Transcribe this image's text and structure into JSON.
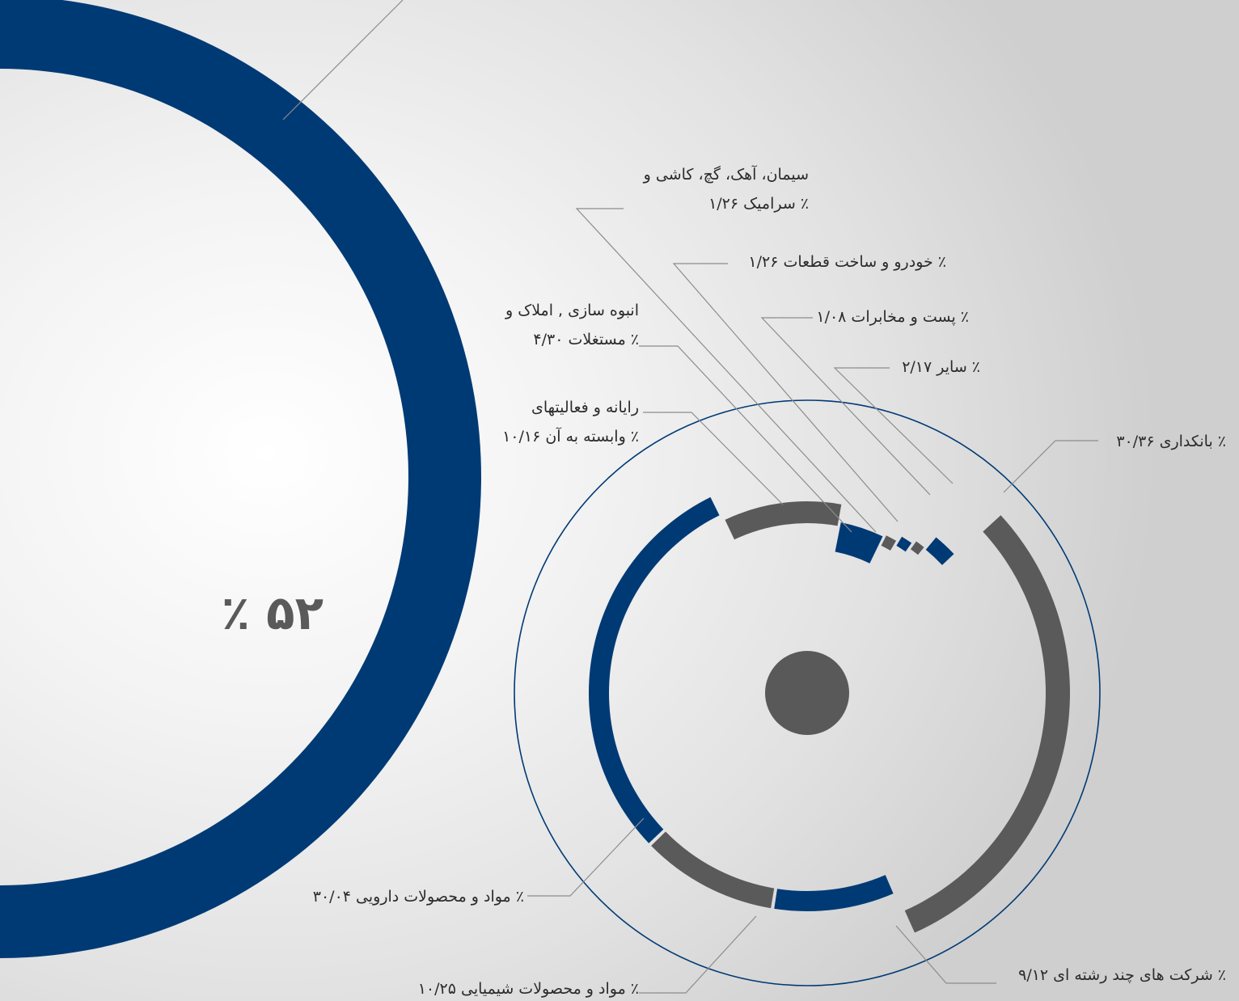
{
  "chart_data": [
    {
      "type": "pie",
      "variant": "donut",
      "values": [
        52
      ],
      "labels": [
        "٪ ۵۲"
      ],
      "colors": {
        "main": "#003a75",
        "secondary": "#6aadac"
      }
    },
    {
      "type": "pie",
      "variant": "radial-segments",
      "slices": [
        {
          "label_lines": [
            "بانکداری ۳۰/۳۶ ٪"
          ],
          "value": 30.36,
          "color": "#5a5a5a"
        },
        {
          "label_lines": [
            "شرکت های چند رشته ای  ۹/۱۲ ٪"
          ],
          "value": 9.12,
          "color": "#003a75"
        },
        {
          "label_lines": [
            "مواد و محصولات شیمیایی  ۱۰/۲۵ ٪"
          ],
          "value": 10.25,
          "color": "#5a5a5a"
        },
        {
          "label_lines": [
            "مواد و محصولات دارویی  ۳۰/۰۴ ٪"
          ],
          "value": 30.04,
          "color": "#003a75"
        },
        {
          "label_lines": [
            "رایانه و فعالیتهای",
            "وابسته به آن  ۱۰/۱۶ ٪"
          ],
          "value": 10.16,
          "color": "#5a5a5a"
        },
        {
          "label_lines": [
            "انبوه سازی , املاک و",
            "مستغلات  ۴/۳۰ ٪"
          ],
          "value": 4.3,
          "color": "#003a75"
        },
        {
          "label_lines": [
            "سیمان، آهک، گچ، کاشی و",
            "سرامیک  ۱/۲۶ ٪"
          ],
          "value": 1.26,
          "color": "#5a5a5a"
        },
        {
          "label_lines": [
            "خودرو و ساخت قطعات ۱/۲۶ ٪"
          ],
          "value": 1.26,
          "color": "#003a75"
        },
        {
          "label_lines": [
            "پست و مخابرات ۱/۰۸ ٪"
          ],
          "value": 1.08,
          "color": "#5a5a5a"
        },
        {
          "label_lines": [
            "سایر ۲/۱۷ ٪"
          ],
          "value": 2.17,
          "color": "#003a75"
        }
      ],
      "colors": {
        "outline": "#003a75",
        "hub": "#595959"
      }
    }
  ]
}
